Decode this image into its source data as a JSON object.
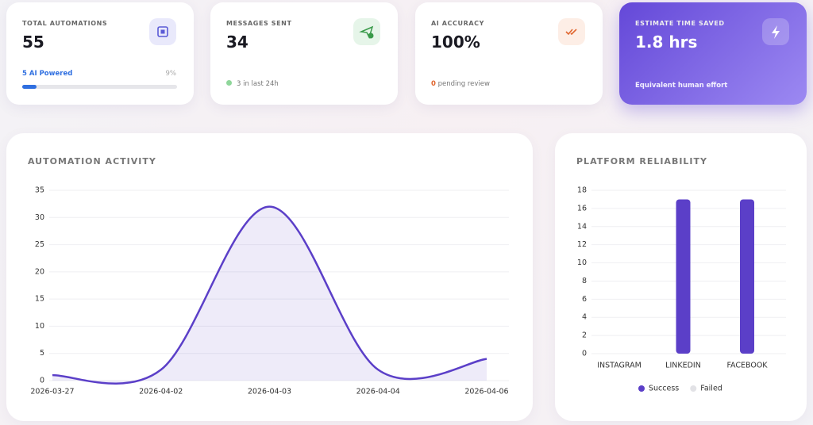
{
  "cards": [
    {
      "label": "TOTAL AUTOMATIONS",
      "value": "55",
      "note": "5 AI Powered",
      "progress": 9,
      "progress_label": "9%"
    },
    {
      "label": "MESSAGES SENT",
      "value": "34",
      "note": "3 in last 24h"
    },
    {
      "label": "AI ACCURACY",
      "value": "100%",
      "note_count": "0",
      "note": "pending review"
    },
    {
      "label": "ESTIMATE TIME SAVED",
      "value": "1.8 hrs",
      "note": "Equivalent human effort"
    }
  ],
  "chart_data": [
    {
      "type": "line",
      "title": "AUTOMATION ACTIVITY",
      "categories": [
        "2026-03-27",
        "2026-04-02",
        "2026-04-03",
        "2026-04-04",
        "2026-04-06"
      ],
      "values": [
        1,
        2,
        32,
        2,
        4
      ],
      "color": "#5b3fc8",
      "ylim": [
        0,
        35
      ],
      "yticks": [
        0,
        5,
        10,
        15,
        20,
        25,
        30,
        35
      ],
      "grid": true
    },
    {
      "type": "bar",
      "title": "PLATFORM RELIABILITY",
      "categories": [
        "INSTAGRAM",
        "LINKEDIN",
        "FACEBOOK"
      ],
      "series": [
        {
          "name": "Success",
          "color": "#5b3fc8",
          "values": [
            0,
            17,
            17
          ]
        },
        {
          "name": "Failed",
          "color": "#e2e2e6",
          "values": [
            0,
            0,
            0
          ]
        }
      ],
      "ylim": [
        0,
        18
      ],
      "yticks": [
        0,
        2,
        4,
        6,
        8,
        10,
        12,
        14,
        16,
        18
      ],
      "grid": true,
      "legend": "bottom"
    }
  ]
}
